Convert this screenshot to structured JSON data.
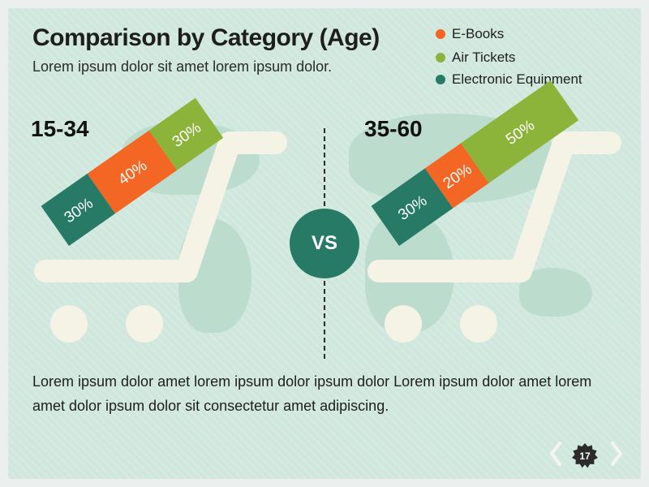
{
  "slide": {
    "title": "Comparison by Category (Age)",
    "subtitle": "Lorem ipsum dolor sit amet lorem ipsum dolor.",
    "vs_label": "VS",
    "body_text": "Lorem ipsum dolor amet lorem ipsum dolor ipsum dolor Lorem ipsum dolor amet lorem amet dolor ipsum dolor sit consectetur  amet adipiscing.",
    "page_number": "17",
    "colors": {
      "background": "#cfe7dc",
      "cart": "#f5f2e6",
      "vs_circle": "#267a66",
      "page_badge": "#2b2b2b",
      "nav_arrows": "#f4f4f4"
    },
    "icons": [
      "shopping-cart-icon",
      "chevron-left-icon",
      "chevron-right-icon",
      "page-badge-icon"
    ]
  },
  "chart_data": [
    {
      "type": "stacked-bar",
      "category": "15-34",
      "series": [
        {
          "name": "Electronic Equipment",
          "value": 30,
          "label": "30%",
          "color": "#267a66"
        },
        {
          "name": "E-Books",
          "value": 40,
          "label": "40%",
          "color": "#f36623"
        },
        {
          "name": "Air Tickets",
          "value": 30,
          "label": "30%",
          "color": "#8cb43a"
        }
      ],
      "legend": [
        {
          "name": "E-Books",
          "color": "#f36623"
        },
        {
          "name": "Air Tickets",
          "color": "#8cb43a"
        },
        {
          "name": "Electronic Equipment",
          "color": "#267a66"
        }
      ],
      "legend_position": "top-right"
    },
    {
      "type": "stacked-bar",
      "category": "35-60",
      "series": [
        {
          "name": "Electronic Equipment",
          "value": 30,
          "label": "30%",
          "color": "#267a66"
        },
        {
          "name": "E-Books",
          "value": 20,
          "label": "20%",
          "color": "#f36623"
        },
        {
          "name": "Air Tickets",
          "value": 50,
          "label": "50%",
          "color": "#8cb43a"
        }
      ]
    }
  ]
}
